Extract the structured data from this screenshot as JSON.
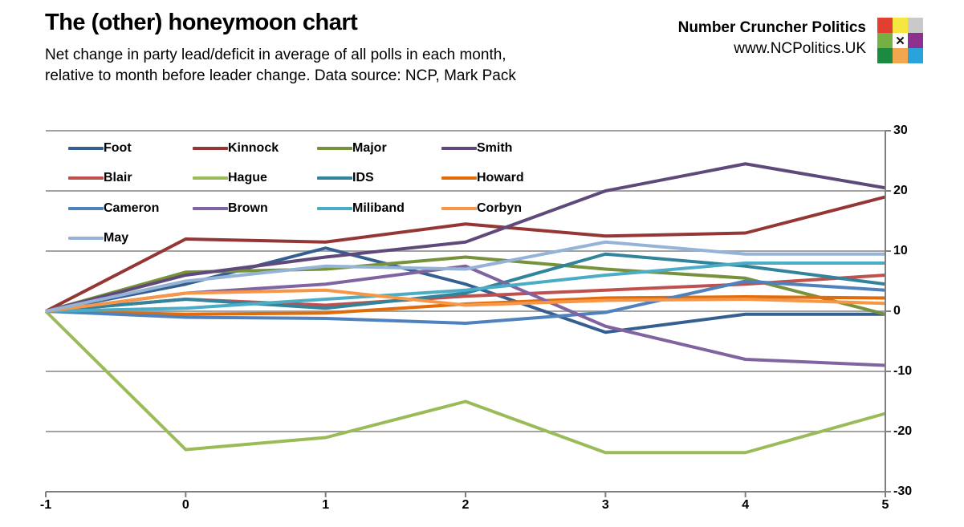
{
  "header": {
    "title": "The (other) honeymoon chart",
    "subtitle_line1": "Net change in party lead/deficit in average of all polls in each month,",
    "subtitle_line2": "relative to month before leader change. Data source: NCP, Mark Pack",
    "brand_name": "Number Cruncher Politics",
    "brand_url": "www.NCPolitics.UK",
    "logo_x_glyph": "✕",
    "logo_cells": [
      [
        "#E23E32",
        "#F5E642",
        "#C9C9C9"
      ],
      [
        "#76B043",
        "#FFFFFF",
        "#8E3090"
      ],
      [
        "#1C8A41",
        "#F2A74F",
        "#29A3DC"
      ]
    ]
  },
  "chart_data": {
    "type": "line",
    "title": "The (other) honeymoon chart",
    "xlabel": "",
    "ylabel": "",
    "x": [
      -1,
      0,
      1,
      2,
      3,
      4,
      5
    ],
    "xticks": [
      "-1",
      "0",
      "1",
      "2",
      "3",
      "4",
      "5"
    ],
    "ylim": [
      -30,
      30
    ],
    "yticks": [
      30,
      20,
      10,
      0,
      -10,
      -20,
      -30
    ],
    "grid": true,
    "legend_position": "top-left-inside",
    "axis_color": "#7F7F7F",
    "grid_color": "#A3A3A3",
    "series": [
      {
        "name": "Foot",
        "color": "#365F91",
        "values": [
          0,
          4.5,
          10.5,
          4.5,
          -3.5,
          -0.5,
          -0.5
        ]
      },
      {
        "name": "Kinnock",
        "color": "#943634",
        "values": [
          0,
          12,
          11.5,
          14.5,
          12.5,
          13,
          19
        ]
      },
      {
        "name": "Major",
        "color": "#76923C",
        "values": [
          0,
          6.5,
          7,
          9,
          7,
          5.5,
          -0.5
        ]
      },
      {
        "name": "Smith",
        "color": "#5F497A",
        "values": [
          0,
          6,
          9,
          11.5,
          20,
          24.5,
          20.5
        ]
      },
      {
        "name": "Blair",
        "color": "#C0504D",
        "values": [
          0,
          2,
          1,
          2.5,
          3.5,
          4.5,
          6
        ]
      },
      {
        "name": "Hague",
        "color": "#9BBB59",
        "values": [
          0,
          -23,
          -21,
          -15,
          -23.5,
          -23.5,
          -17
        ]
      },
      {
        "name": "IDS",
        "color": "#31849B",
        "values": [
          0,
          2,
          0.5,
          3,
          9.5,
          7.5,
          4.5
        ]
      },
      {
        "name": "Howard",
        "color": "#E36C0A",
        "values": [
          0,
          -0.5,
          -0.3,
          1.2,
          2.2,
          2.4,
          2.2
        ]
      },
      {
        "name": "Cameron",
        "color": "#4F81BD",
        "values": [
          0,
          -1,
          -1.2,
          -2,
          -0.2,
          5,
          3.5
        ]
      },
      {
        "name": "Brown",
        "color": "#8064A2",
        "values": [
          0,
          3,
          4.5,
          7.5,
          -2.5,
          -8,
          -9
        ]
      },
      {
        "name": "Miliband",
        "color": "#4BACC6",
        "values": [
          0,
          0.5,
          2,
          3.5,
          6,
          8,
          8
        ]
      },
      {
        "name": "Corbyn",
        "color": "#F79646",
        "values": [
          0,
          3,
          3.5,
          1,
          1.8,
          2,
          1.3
        ]
      },
      {
        "name": "May",
        "color": "#95B3D7",
        "values": [
          0,
          5,
          7.5,
          7,
          11.5,
          9.5,
          9.5
        ]
      }
    ]
  }
}
